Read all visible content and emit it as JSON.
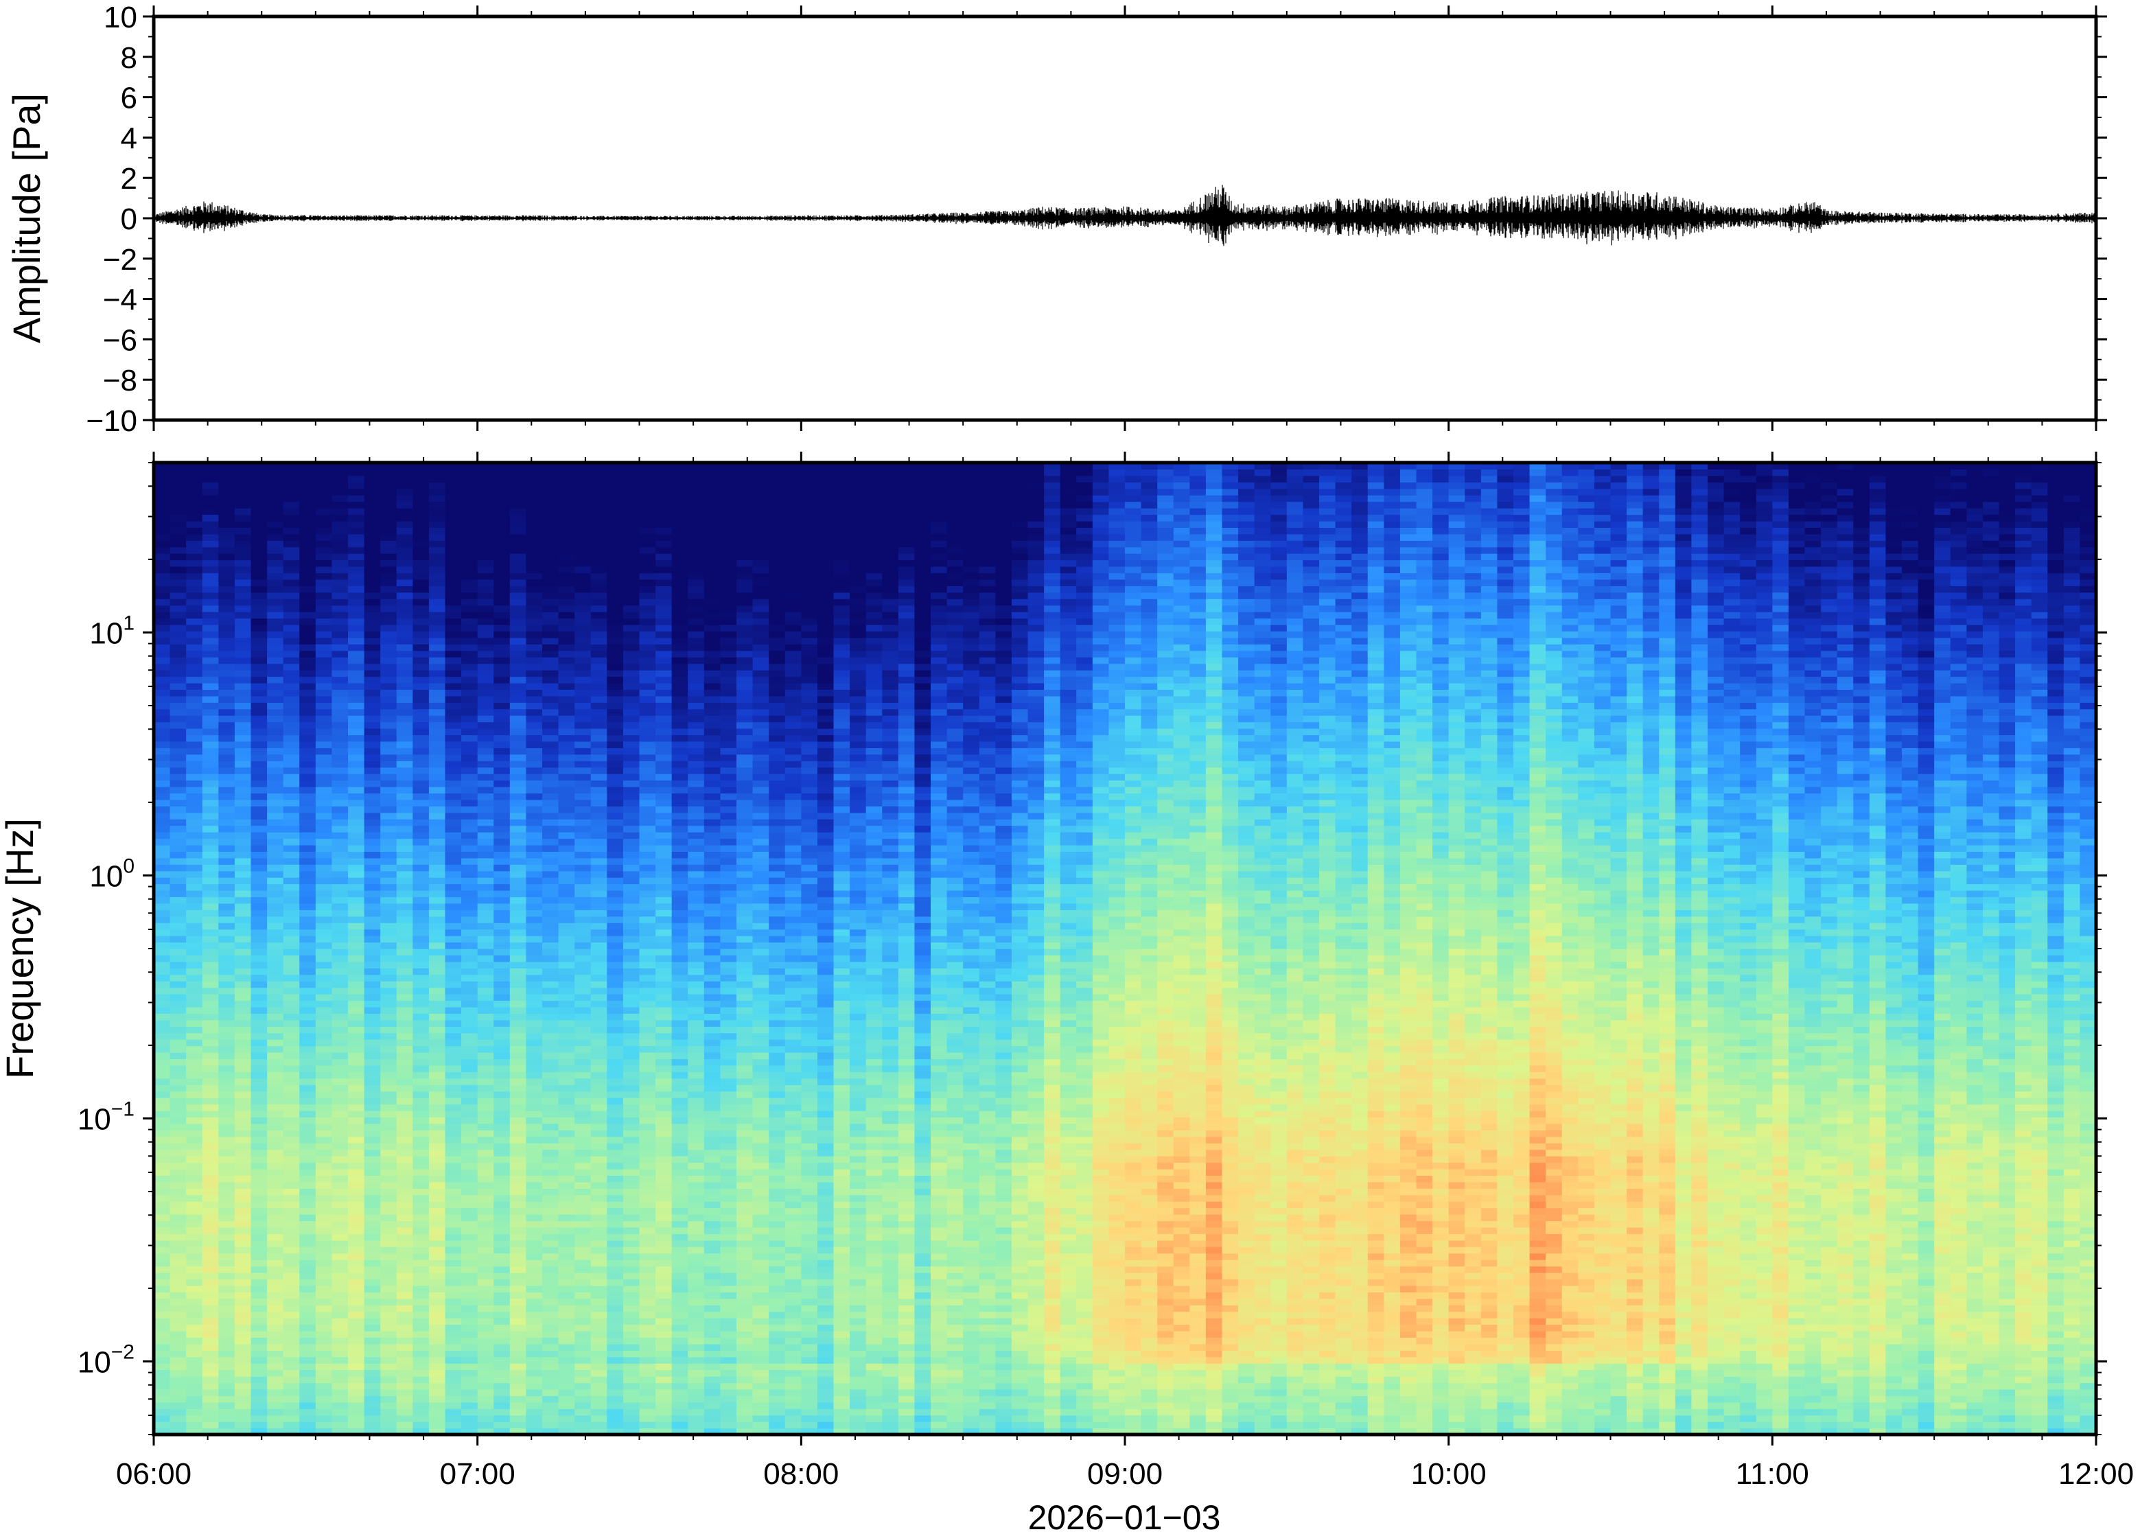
{
  "chart_data": [
    {
      "type": "line",
      "title": "",
      "xlabel": "",
      "ylabel": "Amplitude [Pa]",
      "ylim": [
        -10,
        10
      ],
      "yticks": [
        -10,
        -8,
        -6,
        -4,
        -2,
        0,
        2,
        4,
        6,
        8,
        10
      ],
      "ytick_labels": [
        "−10",
        "−8",
        "−6",
        "−4",
        "−2",
        "0",
        "2",
        "4",
        "6",
        "8",
        "10"
      ],
      "xlim": [
        "06:00",
        "12:00"
      ],
      "line_color": "#000000",
      "grid": false,
      "series": [
        {
          "description_values": "envelope of pressure waveform (max |amplitude| in Pa per time)",
          "x": [
            "06:00",
            "06:10",
            "06:20",
            "06:30",
            "06:40",
            "06:50",
            "07:00",
            "07:10",
            "07:20",
            "07:30",
            "07:40",
            "07:50",
            "08:00",
            "08:10",
            "08:20",
            "08:30",
            "08:40",
            "08:45",
            "08:50",
            "09:00",
            "09:10",
            "09:18",
            "09:20",
            "09:30",
            "09:40",
            "09:50",
            "10:00",
            "10:10",
            "10:20",
            "10:30",
            "10:40",
            "10:50",
            "11:00",
            "11:08",
            "11:10",
            "11:20",
            "11:30",
            "11:40",
            "11:50",
            "12:00"
          ],
          "values": [
            0.2,
            0.9,
            0.2,
            0.15,
            0.15,
            0.15,
            0.15,
            0.15,
            0.12,
            0.12,
            0.12,
            0.12,
            0.15,
            0.15,
            0.2,
            0.3,
            0.4,
            0.6,
            0.5,
            0.6,
            0.4,
            1.8,
            0.8,
            0.6,
            1.0,
            1.0,
            0.8,
            1.1,
            1.2,
            1.4,
            1.3,
            0.6,
            0.5,
            0.9,
            0.4,
            0.3,
            0.25,
            0.2,
            0.2,
            0.3
          ]
        }
      ]
    },
    {
      "type": "heatmap",
      "title": "",
      "xlabel": "2026−01−03",
      "ylabel": "Frequency [Hz]",
      "yscale": "log",
      "ylim": [
        0.005,
        50
      ],
      "yticks": [
        0.01,
        0.1,
        1,
        10
      ],
      "ytick_labels": [
        {
          "base": "10",
          "exp": "−2"
        },
        {
          "base": "10",
          "exp": "−1"
        },
        {
          "base": "10",
          "exp": "0"
        },
        {
          "base": "10",
          "exp": "1"
        }
      ],
      "xticks": [
        "06:00",
        "07:00",
        "08:00",
        "09:00",
        "10:00",
        "11:00",
        "12:00"
      ],
      "colormap": [
        "#0a0a6e",
        "#1437c8",
        "#2a8cff",
        "#4ed8f2",
        "#96f0b4",
        "#dcf58c",
        "#ffd77a",
        "#ff8c50",
        "#e64632"
      ],
      "activity_by_hour_fraction": {
        "x": [
          "06:00",
          "06:30",
          "07:00",
          "07:30",
          "08:00",
          "08:30",
          "08:45",
          "09:00",
          "09:20",
          "09:30",
          "10:00",
          "10:20",
          "10:30",
          "10:40",
          "11:00",
          "11:30",
          "12:00"
        ],
        "relative_level": [
          0.45,
          0.42,
          0.35,
          0.3,
          0.28,
          0.32,
          0.55,
          0.7,
          0.9,
          0.75,
          0.85,
          0.9,
          0.85,
          0.75,
          0.6,
          0.45,
          0.5
        ]
      }
    }
  ]
}
